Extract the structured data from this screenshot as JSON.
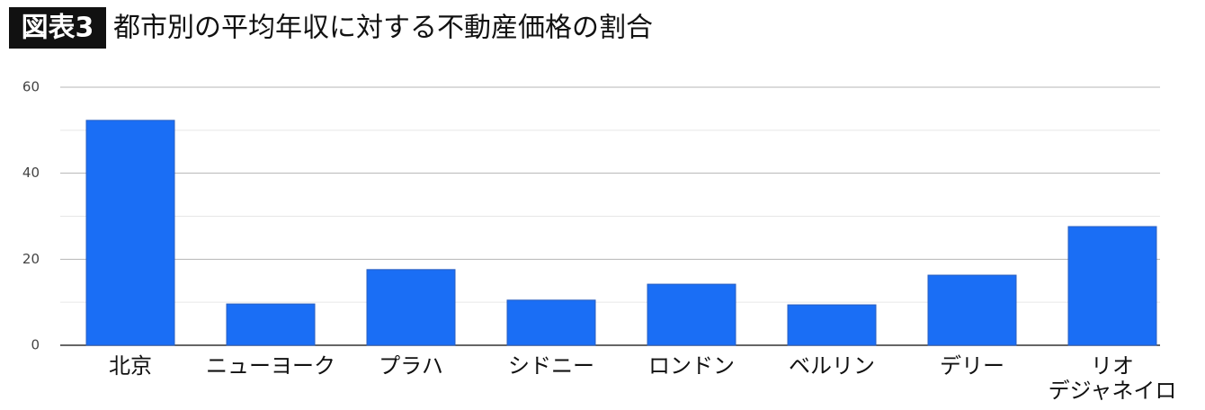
{
  "chart_data": {
    "type": "bar",
    "badge": "図表3",
    "title": "都市別の平均年収に対する不動産価格の割合",
    "categories": [
      "北京",
      "ニューヨーク",
      "プラハ",
      "シドニー",
      "ロンドン",
      "ベルリン",
      "デリー",
      "リオ\nデジャネイロ"
    ],
    "values": [
      52.3,
      9.6,
      17.6,
      10.5,
      14.2,
      9.4,
      16.3,
      27.6
    ],
    "color": "#1a6ef5",
    "ylim": [
      0,
      60
    ],
    "yticks": [
      0,
      20,
      40,
      60
    ],
    "minor_yticks": [
      10,
      30,
      50
    ],
    "grid": true
  }
}
